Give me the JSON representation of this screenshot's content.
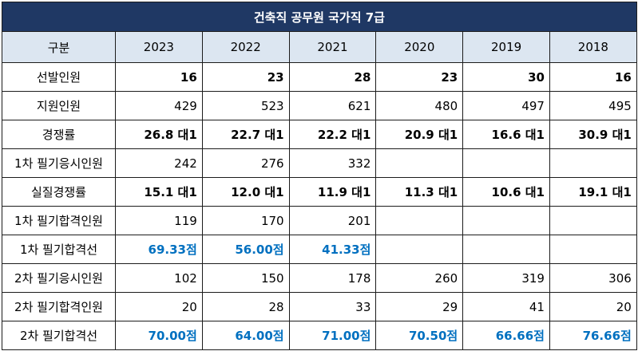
{
  "title": "건축직 공무원 국가직 7급",
  "header": {
    "category_label": "구분",
    "years": [
      "2023",
      "2022",
      "2021",
      "2020",
      "2019",
      "2018"
    ]
  },
  "rows": [
    {
      "label": "선발인원",
      "values": [
        "16",
        "23",
        "28",
        "23",
        "30",
        "16"
      ]
    },
    {
      "label": "지원인원",
      "values": [
        "429",
        "523",
        "621",
        "480",
        "497",
        "495"
      ]
    },
    {
      "label": "경쟁률",
      "values": [
        "26.8 대1",
        "22.7 대1",
        "22.2 대1",
        "20.9 대1",
        "16.6 대1",
        "30.9 대1"
      ]
    },
    {
      "label": "1차 필기응시인원",
      "values": [
        "242",
        "276",
        "332",
        "",
        "",
        ""
      ]
    },
    {
      "label": "실질경쟁률",
      "values": [
        "15.1 대1",
        "12.0 대1",
        "11.9 대1",
        "11.3 대1",
        "10.6 대1",
        "19.1 대1"
      ]
    },
    {
      "label": "1차 필기합격인원",
      "values": [
        "119",
        "170",
        "201",
        "",
        "",
        ""
      ]
    },
    {
      "label": "1차 필기합격선",
      "values": [
        "69.33점",
        "56.00점",
        "41.33점",
        "",
        "",
        ""
      ]
    },
    {
      "label": "2차 필기응시인원",
      "values": [
        "102",
        "150",
        "178",
        "260",
        "319",
        "306"
      ]
    },
    {
      "label": "2차 필기합격인원",
      "values": [
        "20",
        "28",
        "33",
        "29",
        "41",
        "20"
      ]
    },
    {
      "label": "2차 필기합격선",
      "values": [
        "70.00점",
        "64.00점",
        "71.00점",
        "70.50점",
        "66.66점",
        "76.66점"
      ]
    }
  ],
  "colors": {
    "title_bg": "#1f3864",
    "header_bg": "#dce6f1",
    "highlight_text": "#0070c0"
  }
}
